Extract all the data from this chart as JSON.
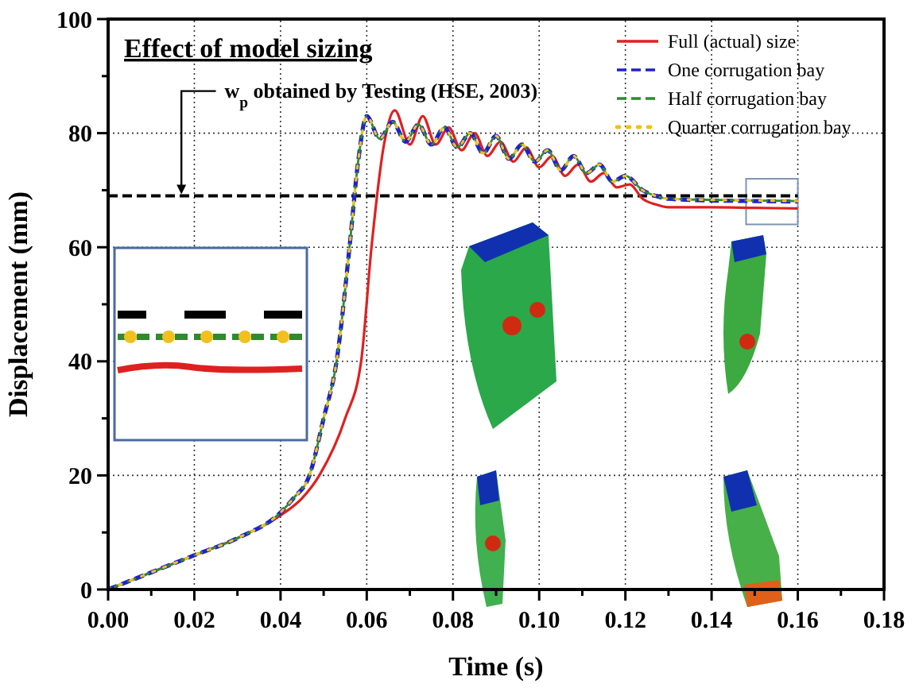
{
  "chart_data": {
    "type": "line",
    "title": "Effect of model sizing",
    "xlabel": "Time (s)",
    "ylabel": "Displacement (mm)",
    "xlim": [
      0,
      0.18
    ],
    "ylim": [
      0,
      100
    ],
    "xticks": [
      {
        "value": 0,
        "label": "0.00"
      },
      {
        "value": 0.02,
        "label": "0.02"
      },
      {
        "value": 0.04,
        "label": "0.04"
      },
      {
        "value": 0.06,
        "label": "0.06"
      },
      {
        "value": 0.08,
        "label": "0.08"
      },
      {
        "value": 0.1,
        "label": "0.10"
      },
      {
        "value": 0.12,
        "label": "0.12"
      },
      {
        "value": 0.14,
        "label": "0.14"
      },
      {
        "value": 0.16,
        "label": "0.16"
      },
      {
        "value": 0.18,
        "label": "0.18"
      }
    ],
    "yticks": [
      0,
      20,
      40,
      60,
      80,
      100
    ],
    "grid": true,
    "legend": "top right",
    "marker": "none",
    "ref_lines": [
      {
        "axis": "y",
        "value": 69,
        "label": "w$_{p}$ obtained by Testing (HSE, 2003)",
        "color": "#000000",
        "line_style": "dashed"
      }
    ],
    "series": [
      {
        "name": "Full (actual) size",
        "color": "#e02020",
        "line_style": "solid",
        "x": [
          0,
          0.01,
          0.02,
          0.03,
          0.04,
          0.045,
          0.049,
          0.055,
          0.0587,
          0.0611,
          0.064,
          0.0665,
          0.07,
          0.073,
          0.076,
          0.079,
          0.082,
          0.085,
          0.088,
          0.091,
          0.094,
          0.097,
          0.1,
          0.103,
          0.106,
          0.109,
          0.112,
          0.115,
          0.118,
          0.121,
          0.124,
          0.127,
          0.13,
          0.14,
          0.15,
          0.16
        ],
        "values": [
          0,
          3,
          6,
          9,
          13,
          16,
          20,
          30,
          40,
          60,
          78,
          84,
          78,
          83,
          78,
          81,
          77,
          80,
          76,
          78.5,
          75,
          77.5,
          74,
          76,
          72.5,
          74.5,
          71.5,
          73,
          70.5,
          71,
          68.5,
          67.5,
          67,
          67,
          66.9,
          66.8
        ]
      },
      {
        "name": "One corrugation bay",
        "color": "#2020d0",
        "line_style": "dashed",
        "x": [
          0,
          0.01,
          0.02,
          0.03,
          0.04,
          0.043,
          0.0467,
          0.05,
          0.053,
          0.056,
          0.058,
          0.06,
          0.063,
          0.066,
          0.069,
          0.072,
          0.075,
          0.078,
          0.081,
          0.084,
          0.087,
          0.09,
          0.093,
          0.096,
          0.099,
          0.102,
          0.105,
          0.108,
          0.111,
          0.114,
          0.117,
          0.12,
          0.124,
          0.127,
          0.13,
          0.14,
          0.15,
          0.16
        ],
        "values": [
          0,
          3,
          6,
          9,
          13.5,
          16,
          20,
          30,
          40,
          60,
          75,
          83,
          79,
          82,
          78.5,
          81.5,
          78,
          81,
          77.5,
          80,
          76.5,
          79.5,
          75.5,
          78,
          75,
          77,
          73.5,
          76,
          73,
          74.5,
          71.5,
          72.5,
          70,
          69,
          68.5,
          68.2,
          68.1,
          68
        ]
      },
      {
        "name": "Half corrugation bay",
        "color": "#2e8b2e",
        "line_style": "dashed",
        "x": [
          0,
          0.01,
          0.02,
          0.03,
          0.04,
          0.043,
          0.0467,
          0.05,
          0.053,
          0.056,
          0.058,
          0.06,
          0.063,
          0.066,
          0.069,
          0.072,
          0.075,
          0.078,
          0.081,
          0.084,
          0.087,
          0.09,
          0.093,
          0.096,
          0.099,
          0.102,
          0.105,
          0.108,
          0.111,
          0.114,
          0.117,
          0.12,
          0.124,
          0.127,
          0.13,
          0.14,
          0.15,
          0.16
        ],
        "values": [
          0,
          3,
          6,
          9,
          13.5,
          16,
          20,
          30,
          40,
          60,
          75,
          83,
          79,
          82,
          78.5,
          81.5,
          78,
          81,
          77.5,
          80,
          76.5,
          79.5,
          75.5,
          78,
          75,
          77,
          73.5,
          76,
          73,
          74.5,
          71.5,
          72.5,
          70,
          69,
          68.5,
          68.3,
          68.2,
          68.1
        ]
      },
      {
        "name": "Quarter corrugation bay",
        "color": "#f0c020",
        "line_style": "dotted",
        "x": [
          0,
          0.01,
          0.02,
          0.03,
          0.04,
          0.043,
          0.0467,
          0.05,
          0.053,
          0.056,
          0.058,
          0.06,
          0.063,
          0.066,
          0.069,
          0.072,
          0.075,
          0.078,
          0.081,
          0.084,
          0.087,
          0.09,
          0.093,
          0.096,
          0.099,
          0.102,
          0.105,
          0.108,
          0.111,
          0.114,
          0.117,
          0.12,
          0.124,
          0.127,
          0.13,
          0.14,
          0.15,
          0.16
        ],
        "values": [
          0,
          3,
          6,
          9,
          13.5,
          16,
          20,
          30,
          40,
          60,
          75,
          83,
          79,
          82,
          78.5,
          81.5,
          78,
          81,
          77.5,
          80,
          76.5,
          79.5,
          75.5,
          78,
          75,
          77,
          73.5,
          76,
          73,
          74.5,
          71.5,
          72.5,
          70,
          69,
          68.5,
          68.3,
          68.2,
          68.1
        ]
      }
    ]
  }
}
